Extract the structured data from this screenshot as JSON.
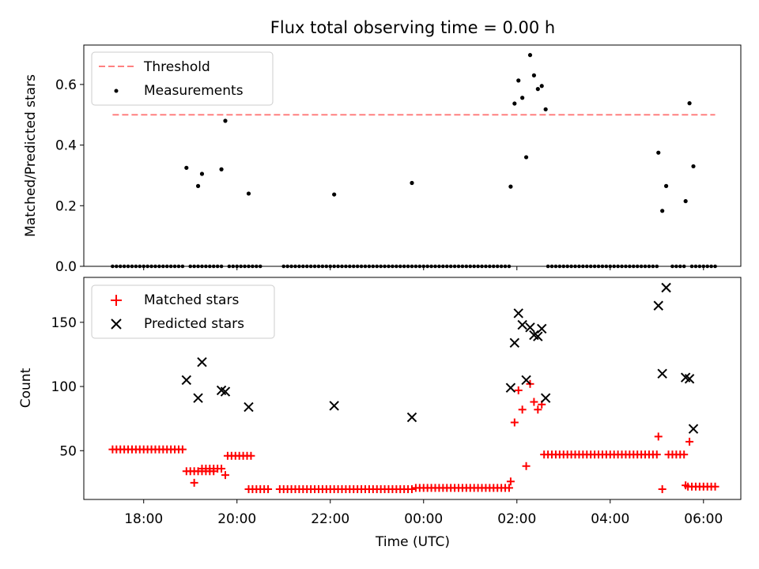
{
  "figure": {
    "title": "Flux total observing time = 0.00 h",
    "xlabel": "Time (UTC)",
    "xticks": [
      {
        "t": 18,
        "label": "18:00"
      },
      {
        "t": 20,
        "label": "20:00"
      },
      {
        "t": 22,
        "label": "22:00"
      },
      {
        "t": 24,
        "label": "00:00"
      },
      {
        "t": 26,
        "label": "02:00"
      },
      {
        "t": 28,
        "label": "04:00"
      },
      {
        "t": 30,
        "label": "06:00"
      }
    ]
  },
  "chart_data": [
    {
      "type": "scatter",
      "ylabel": "Matched/Predicted stars",
      "xlim": [
        "16:43",
        "06:48"
      ],
      "ylim": [
        0,
        0.73
      ],
      "yticks": [
        0.0,
        0.2,
        0.4,
        0.6
      ],
      "legend_placement": "top-left",
      "threshold": {
        "name": "Threshold",
        "value": 0.5,
        "x_start": "17:20",
        "x_end": "06:15",
        "color": "#ff8080"
      },
      "measurements": {
        "name": "Measurements",
        "color": "#000000",
        "zero_run_segments": [
          [
            "17:20",
            "18:52"
          ],
          [
            "19:00",
            "19:20"
          ],
          [
            "19:25",
            "19:40"
          ],
          [
            "19:50",
            "20:30"
          ],
          [
            "21:00",
            "23:45"
          ],
          [
            "23:50",
            "01:50"
          ],
          [
            "02:40",
            "05:00"
          ],
          [
            "05:20",
            "05:35"
          ],
          [
            "05:45",
            "06:15"
          ]
        ],
        "points": [
          {
            "x": "18:55",
            "y": 0.325
          },
          {
            "x": "19:10",
            "y": 0.265
          },
          {
            "x": "19:15",
            "y": 0.305
          },
          {
            "x": "19:40",
            "y": 0.32
          },
          {
            "x": "19:45",
            "y": 0.48
          },
          {
            "x": "20:15",
            "y": 0.24
          },
          {
            "x": "22:05",
            "y": 0.237
          },
          {
            "x": "23:45",
            "y": 0.275
          },
          {
            "x": "01:52",
            "y": 0.263
          },
          {
            "x": "01:57",
            "y": 0.537
          },
          {
            "x": "02:02",
            "y": 0.613
          },
          {
            "x": "02:07",
            "y": 0.556
          },
          {
            "x": "02:12",
            "y": 0.36
          },
          {
            "x": "02:17",
            "y": 0.697
          },
          {
            "x": "02:22",
            "y": 0.63
          },
          {
            "x": "02:27",
            "y": 0.585
          },
          {
            "x": "02:32",
            "y": 0.595
          },
          {
            "x": "02:37",
            "y": 0.518
          },
          {
            "x": "05:02",
            "y": 0.375
          },
          {
            "x": "05:07",
            "y": 0.183
          },
          {
            "x": "05:12",
            "y": 0.265
          },
          {
            "x": "05:37",
            "y": 0.215
          },
          {
            "x": "05:42",
            "y": 0.538
          },
          {
            "x": "05:47",
            "y": 0.33
          }
        ]
      }
    },
    {
      "type": "scatter",
      "ylabel": "Count",
      "xlim": [
        "16:43",
        "06:48"
      ],
      "ylim": [
        12,
        185
      ],
      "yticks": [
        50,
        100,
        150
      ],
      "legend_placement": "top-left",
      "series": [
        {
          "name": "Matched stars",
          "marker": "+",
          "color": "#ff0000",
          "constant_runs": [
            {
              "x_start": "17:20",
              "x_end": "18:52",
              "y": 51
            },
            {
              "x_start": "18:55",
              "x_end": "19:30",
              "y": 34
            },
            {
              "x_start": "19:15",
              "x_end": "19:40",
              "y": 36
            },
            {
              "x_start": "19:48",
              "x_end": "20:20",
              "y": 46
            },
            {
              "x_start": "20:15",
              "x_end": "20:40",
              "y": 20
            },
            {
              "x_start": "20:55",
              "x_end": "23:45",
              "y": 20
            },
            {
              "x_start": "23:50",
              "x_end": "01:50",
              "y": 21
            },
            {
              "x_start": "02:35",
              "x_end": "05:00",
              "y": 47
            },
            {
              "x_start": "05:15",
              "x_end": "05:35",
              "y": 47
            },
            {
              "x_start": "05:40",
              "x_end": "06:15",
              "y": 22
            }
          ],
          "points": [
            {
              "x": "19:05",
              "y": 25
            },
            {
              "x": "19:45",
              "y": 31
            },
            {
              "x": "01:52",
              "y": 26
            },
            {
              "x": "01:57",
              "y": 72
            },
            {
              "x": "02:02",
              "y": 97
            },
            {
              "x": "02:07",
              "y": 82
            },
            {
              "x": "02:12",
              "y": 38
            },
            {
              "x": "02:17",
              "y": 102
            },
            {
              "x": "02:22",
              "y": 88
            },
            {
              "x": "02:27",
              "y": 82
            },
            {
              "x": "02:32",
              "y": 86
            },
            {
              "x": "05:02",
              "y": 61
            },
            {
              "x": "05:07",
              "y": 20
            },
            {
              "x": "05:37",
              "y": 23
            },
            {
              "x": "05:42",
              "y": 57
            }
          ]
        },
        {
          "name": "Predicted stars",
          "marker": "x",
          "color": "#000000",
          "points": [
            {
              "x": "18:55",
              "y": 105
            },
            {
              "x": "19:10",
              "y": 91
            },
            {
              "x": "19:15",
              "y": 119
            },
            {
              "x": "19:40",
              "y": 97
            },
            {
              "x": "19:45",
              "y": 96
            },
            {
              "x": "20:15",
              "y": 84
            },
            {
              "x": "22:05",
              "y": 85
            },
            {
              "x": "23:45",
              "y": 76
            },
            {
              "x": "01:52",
              "y": 99
            },
            {
              "x": "01:57",
              "y": 134
            },
            {
              "x": "02:02",
              "y": 157
            },
            {
              "x": "02:07",
              "y": 148
            },
            {
              "x": "02:12",
              "y": 105
            },
            {
              "x": "02:17",
              "y": 146
            },
            {
              "x": "02:22",
              "y": 140
            },
            {
              "x": "02:27",
              "y": 139
            },
            {
              "x": "02:32",
              "y": 145
            },
            {
              "x": "02:37",
              "y": 91
            },
            {
              "x": "05:02",
              "y": 163
            },
            {
              "x": "05:07",
              "y": 110
            },
            {
              "x": "05:12",
              "y": 177
            },
            {
              "x": "05:37",
              "y": 107
            },
            {
              "x": "05:42",
              "y": 106
            },
            {
              "x": "05:47",
              "y": 67
            }
          ]
        }
      ]
    }
  ]
}
